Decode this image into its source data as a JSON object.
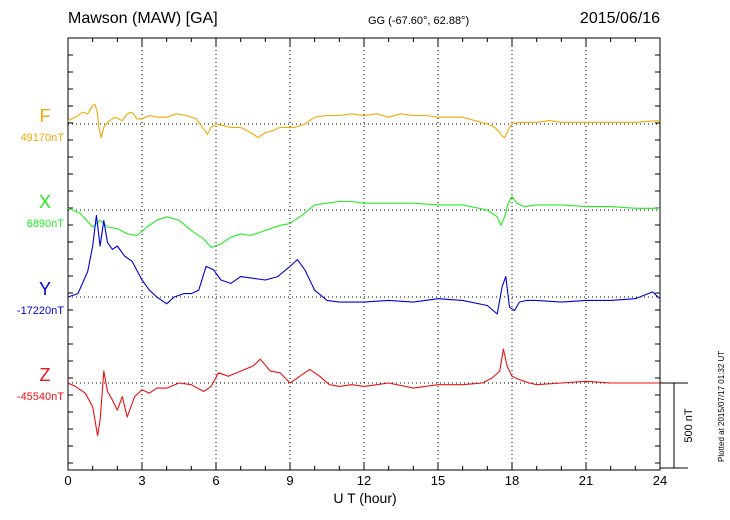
{
  "header": {
    "station": "Mawson (MAW)  [GA]",
    "coordinates": "GG (-67.60°,  62.88°)",
    "date": "2015/06/16"
  },
  "plotted_note": "Plotted at 2015/07/17 01:32 UT",
  "chart_data": {
    "type": "line",
    "xlabel": "U T (hour)",
    "xlim": [
      0,
      24
    ],
    "xticks": [
      0,
      3,
      6,
      9,
      12,
      15,
      18,
      21,
      24
    ],
    "grid": true,
    "scale_bar": {
      "value": 500,
      "label": "500 nT"
    },
    "units": "nT",
    "series": [
      {
        "name": "F",
        "baseline_label": "49170nT",
        "baseline": 49170,
        "color": "#f2a900",
        "x": [
          0,
          0.3,
          0.6,
          0.8,
          1.0,
          1.1,
          1.2,
          1.25,
          1.35,
          1.45,
          1.6,
          1.9,
          2.2,
          2.4,
          2.6,
          2.8,
          3.0,
          3.3,
          3.6,
          4.0,
          4.4,
          4.8,
          5.2,
          5.5,
          5.65,
          5.8,
          6.0,
          6.3,
          6.6,
          7.0,
          7.4,
          7.7,
          8.0,
          8.3,
          8.6,
          8.9,
          9.2,
          9.6,
          10.0,
          10.5,
          11.0,
          11.5,
          12.0,
          12.5,
          13.0,
          13.5,
          14.0,
          14.5,
          15.0,
          15.5,
          16.0,
          16.5,
          17.0,
          17.3,
          17.5,
          17.6,
          17.7,
          17.8,
          17.9,
          18.0,
          18.3,
          18.6,
          19.0,
          19.5,
          20.0,
          21.0,
          22.0,
          23.0,
          24.0
        ],
        "y": [
          20,
          40,
          70,
          60,
          110,
          115,
          60,
          -20,
          -80,
          -20,
          10,
          40,
          20,
          60,
          70,
          30,
          30,
          50,
          40,
          40,
          60,
          50,
          30,
          -30,
          -60,
          -20,
          0,
          -10,
          -20,
          -20,
          -50,
          -80,
          -50,
          -40,
          -20,
          -20,
          -20,
          0,
          40,
          50,
          50,
          60,
          50,
          60,
          40,
          60,
          50,
          50,
          40,
          40,
          40,
          20,
          0,
          -20,
          -50,
          -70,
          -80,
          -50,
          -20,
          0,
          10,
          10,
          10,
          20,
          10,
          10,
          10,
          10,
          20
        ]
      },
      {
        "name": "X",
        "baseline_label": "6890nT",
        "baseline": 6890,
        "color": "#22ee22",
        "x": [
          0,
          0.5,
          1.0,
          1.3,
          1.6,
          2.0,
          2.4,
          2.8,
          3.2,
          3.6,
          4.0,
          4.5,
          5.0,
          5.5,
          5.8,
          6.2,
          6.6,
          7.0,
          7.4,
          7.8,
          8.2,
          8.6,
          9.0,
          9.5,
          10.0,
          10.5,
          11.0,
          11.5,
          12.0,
          13.0,
          14.0,
          15.0,
          16.0,
          17.0,
          17.4,
          17.55,
          17.7,
          17.85,
          18.0,
          18.2,
          18.5,
          19.0,
          20.0,
          21.0,
          22.0,
          23.0,
          24.0
        ],
        "y": [
          10,
          -20,
          -100,
          -60,
          -100,
          -110,
          -140,
          -150,
          -100,
          -60,
          -40,
          -60,
          -120,
          -170,
          -220,
          -200,
          -160,
          -140,
          -150,
          -130,
          -110,
          -90,
          -80,
          -30,
          30,
          40,
          50,
          50,
          40,
          40,
          40,
          30,
          30,
          0,
          -40,
          -90,
          -40,
          40,
          80,
          40,
          20,
          30,
          30,
          20,
          20,
          10,
          10
        ]
      },
      {
        "name": "Y",
        "baseline_label": "-17220nT",
        "baseline": -17220,
        "color": "#0000dd",
        "x": [
          0,
          0.4,
          0.8,
          1.0,
          1.15,
          1.3,
          1.45,
          1.6,
          1.8,
          2.0,
          2.3,
          2.6,
          3.0,
          3.3,
          3.6,
          4.0,
          4.3,
          4.7,
          5.0,
          5.3,
          5.6,
          5.9,
          6.2,
          6.6,
          7.0,
          7.5,
          8.0,
          8.5,
          9.0,
          9.3,
          9.6,
          10.0,
          10.5,
          11.0,
          12.0,
          13.0,
          14.0,
          15.0,
          16.0,
          17.0,
          17.4,
          17.6,
          17.75,
          17.9,
          18.1,
          18.3,
          18.6,
          19.0,
          20.0,
          21.0,
          22.0,
          23.0,
          23.7,
          24.0
        ],
        "y": [
          0,
          20,
          150,
          300,
          480,
          300,
          450,
          320,
          280,
          300,
          240,
          210,
          100,
          40,
          0,
          -40,
          0,
          20,
          20,
          40,
          180,
          160,
          100,
          80,
          120,
          110,
          100,
          120,
          180,
          220,
          160,
          40,
          -20,
          -30,
          -30,
          -20,
          -30,
          -10,
          -20,
          -50,
          -100,
          60,
          120,
          -60,
          -80,
          -30,
          -20,
          -20,
          -30,
          -20,
          -20,
          -10,
          30,
          -10
        ]
      },
      {
        "name": "Z",
        "baseline_label": "-45540nT",
        "baseline": -45540,
        "color": "#ee1111",
        "x": [
          0,
          0.3,
          0.7,
          1.0,
          1.2,
          1.3,
          1.45,
          1.6,
          1.8,
          2.0,
          2.2,
          2.4,
          2.7,
          3.0,
          3.3,
          3.6,
          4.0,
          4.5,
          5.0,
          5.5,
          5.8,
          6.1,
          6.5,
          7.0,
          7.5,
          7.8,
          8.2,
          8.6,
          9.0,
          9.4,
          9.8,
          10.2,
          10.6,
          11.0,
          11.5,
          12.0,
          13.0,
          14.0,
          15.0,
          16.0,
          16.8,
          17.2,
          17.5,
          17.65,
          17.8,
          18.0,
          18.3,
          18.7,
          19.0,
          20.0,
          21.0,
          22.0,
          23.0,
          24.0
        ],
        "y": [
          0,
          -20,
          -60,
          -140,
          -310,
          -220,
          70,
          -50,
          -100,
          -160,
          -80,
          -200,
          -80,
          -40,
          -60,
          -30,
          -30,
          0,
          -10,
          -50,
          -20,
          60,
          40,
          70,
          100,
          140,
          70,
          60,
          0,
          40,
          80,
          40,
          -10,
          -20,
          -10,
          -20,
          0,
          -30,
          -10,
          -10,
          0,
          30,
          70,
          200,
          100,
          40,
          20,
          0,
          -10,
          0,
          10,
          0,
          0,
          0
        ]
      }
    ]
  }
}
